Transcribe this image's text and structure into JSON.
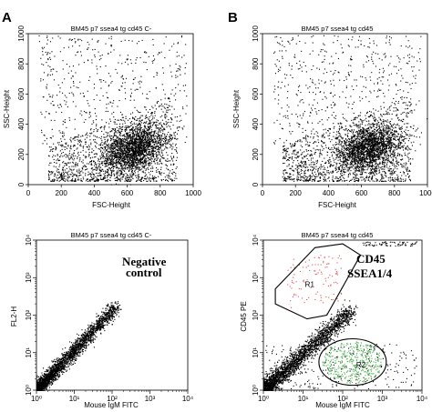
{
  "panels": {
    "A": "A",
    "B": "B"
  },
  "colors": {
    "dots": "#000000",
    "gate_r1_events": "#e05050",
    "gate_r2_events": "#4caf50",
    "gate_outline": "#000000"
  },
  "chart_data": [
    {
      "type": "scatter",
      "panel": "A",
      "title": "BM45 p7 ssea4 tg cd45 C-",
      "xlabel": "FSC-Height",
      "ylabel": "SSC-Height",
      "xlim": [
        0,
        1000
      ],
      "ylim": [
        0,
        1000
      ],
      "x_ticks": [
        "0",
        "200",
        "400",
        "600",
        "800",
        "1000"
      ],
      "y_ticks": [
        "0",
        "200",
        "400",
        "600",
        "800",
        "1000"
      ],
      "scale": "linear",
      "density_peak": {
        "x": 640,
        "y": 240
      }
    },
    {
      "type": "scatter",
      "panel": "B",
      "title": "BM45 p7 ssea4 tg cd45",
      "xlabel": "FSC-Height",
      "ylabel": "SSC-Height",
      "xlim": [
        0,
        1000
      ],
      "ylim": [
        0,
        1000
      ],
      "x_ticks": [
        "0",
        "200",
        "400",
        "600",
        "800",
        "1000"
      ],
      "y_ticks": [
        "0",
        "200",
        "400",
        "600",
        "800",
        "1000"
      ],
      "scale": "linear",
      "density_peak": {
        "x": 640,
        "y": 240
      }
    },
    {
      "type": "scatter",
      "panel": "A",
      "title": "BM45 p7 ssea4 tg cd45 C-",
      "xlabel": "Mouse IgM FITC",
      "ylabel": "FL2-H",
      "scale": "log",
      "xlim": [
        1,
        10000
      ],
      "ylim": [
        1,
        10000
      ],
      "x_ticks": [
        "10⁰",
        "10¹",
        "10²",
        "10³",
        "10⁴"
      ],
      "y_ticks": [
        "10⁰",
        "10¹",
        "10²",
        "10³",
        "10⁴"
      ],
      "annotation": [
        "Negative",
        "control"
      ],
      "population": "diagonal, 10⁰–10²"
    },
    {
      "type": "scatter",
      "panel": "B",
      "title": "BM45 p7 ssea4 tg cd45",
      "xlabel": "Mouse IgM FITC",
      "ylabel": "CD45 PE",
      "scale": "log",
      "xlim": [
        1,
        10000
      ],
      "ylim": [
        1,
        10000
      ],
      "x_ticks": [
        "10⁰",
        "10¹",
        "10²",
        "10³",
        "10⁴"
      ],
      "y_ticks": [
        "10⁰",
        "10¹",
        "10²",
        "10³",
        "10⁴"
      ],
      "annotation": [
        "CD45",
        "SSEA1/4"
      ],
      "gates": [
        {
          "name": "R1",
          "shape": "polygon",
          "vertices_log": [
            [
              0.3,
              2.7
            ],
            [
              1.3,
              3.8
            ],
            [
              2.0,
              3.9
            ],
            [
              2.45,
              3.6
            ],
            [
              1.6,
              2.0
            ],
            [
              1.1,
              1.9
            ],
            [
              0.3,
              2.3
            ]
          ]
        },
        {
          "name": "R2",
          "shape": "ellipse",
          "center_log": [
            2.25,
            0.75
          ],
          "radii_log": [
            0.85,
            0.62
          ]
        }
      ]
    }
  ]
}
